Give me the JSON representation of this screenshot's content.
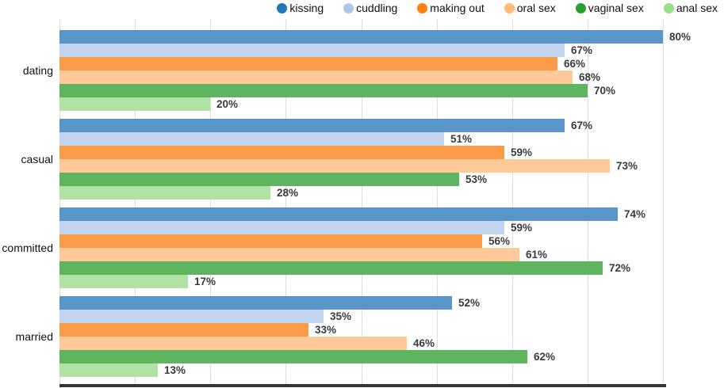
{
  "chart_data": {
    "type": "bar",
    "orientation": "horizontal",
    "unit": "%",
    "title": "",
    "xlabel": "",
    "ylabel": "",
    "categories": [
      "dating",
      "casual",
      "committed",
      "married"
    ],
    "series": [
      {
        "name": "kissing",
        "legend_color": "#1f77b4",
        "bar_color": "#5995c6",
        "values": [
          80,
          67,
          74,
          52
        ]
      },
      {
        "name": "cuddling",
        "legend_color": "#aec7e8",
        "bar_color": "#c1d4ed",
        "values": [
          67,
          51,
          59,
          35
        ]
      },
      {
        "name": "making out",
        "legend_color": "#ff7f0e",
        "bar_color": "#fd9c48",
        "values": [
          66,
          59,
          56,
          33
        ]
      },
      {
        "name": "oral sex",
        "legend_color": "#ffbb78",
        "bar_color": "#fecb98",
        "values": [
          68,
          73,
          61,
          46
        ]
      },
      {
        "name": "vaginal sex",
        "legend_color": "#2ca02c",
        "bar_color": "#5fb45f",
        "values": [
          70,
          53,
          72,
          62
        ]
      },
      {
        "name": "anal sex",
        "legend_color": "#98df8a",
        "bar_color": "#b0e3a3",
        "values": [
          20,
          28,
          17,
          13
        ]
      }
    ],
    "value_labels": {
      "dating": {
        "kissing": "80%",
        "cuddling": "67%",
        "making out": "66%",
        "oral sex": "68%",
        "vaginal sex": "70%",
        "anal sex": "20%"
      },
      "casual": {
        "kissing": "67%",
        "cuddling": "51%",
        "making out": "59%",
        "oral sex": "73%",
        "vaginal sex": "53%",
        "anal sex": "28%"
      },
      "committed": {
        "kissing": "74%",
        "cuddling": "59%",
        "making out": "56%",
        "oral sex": "61%",
        "vaginal sex": "72%",
        "anal sex": "17%"
      },
      "married": {
        "kissing": "52%",
        "cuddling": "35%",
        "making out": "33%",
        "oral sex": "46%",
        "vaginal sex": "62%",
        "anal sex": "13%"
      }
    },
    "xlim": [
      0,
      88
    ],
    "gridlines_percent": [
      0,
      10,
      20,
      30,
      40,
      50,
      60,
      70,
      80
    ],
    "grid": true,
    "legend_position": "top-right",
    "value_label_format": "{value}%"
  },
  "colors": {
    "background": "#ffffff",
    "gridline": "#dddddd",
    "axis_line": "#363636",
    "value_label": "#3b3b3b",
    "category_label": "#111111",
    "legend_text": "#111111"
  }
}
